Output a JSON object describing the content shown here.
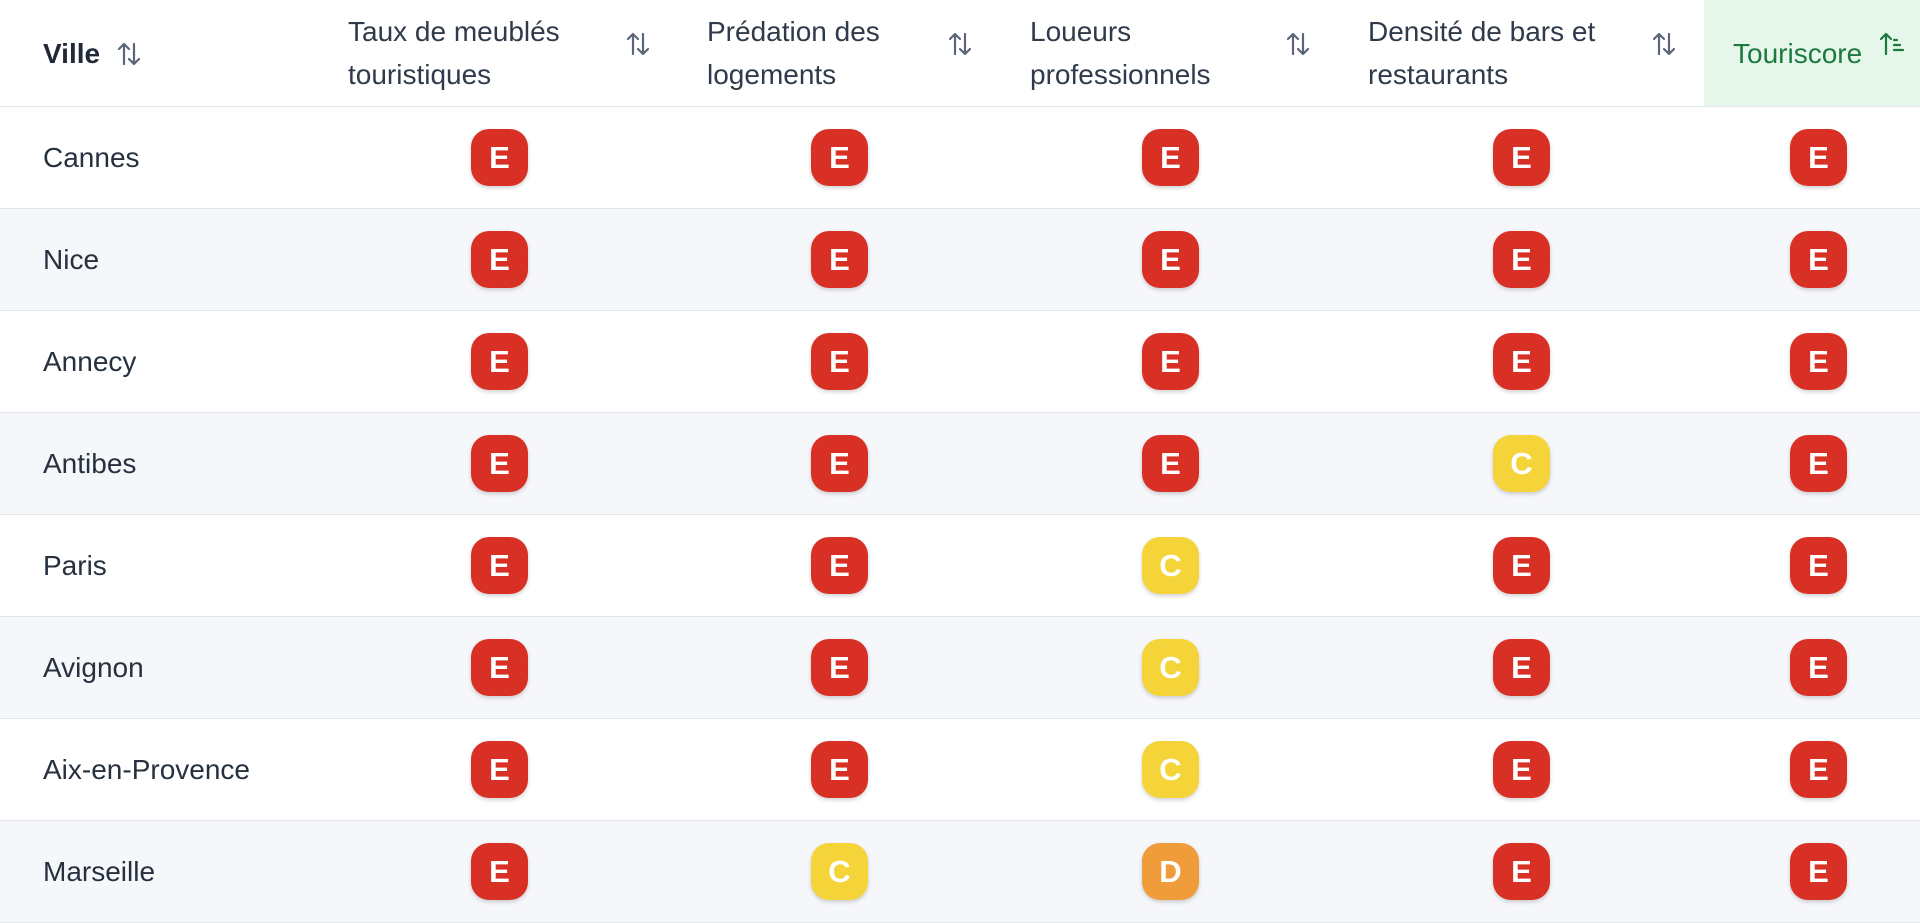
{
  "colors": {
    "E": "#d93025",
    "D": "#f09c3a",
    "C": "#f5d43a",
    "touriscore_header_bg": "#e6f6ea",
    "touriscore_header_text": "#1d7a3e"
  },
  "header": {
    "ville": "Ville",
    "taux_line1": "Taux de meublés",
    "taux_line2": "touristiques",
    "predation_line1": "Prédation des",
    "predation_line2": "logements",
    "loueurs_line1": "Loueurs",
    "loueurs_line2": "professionnels",
    "densite_line1": "Densité de bars et",
    "densite_line2": "restaurants",
    "touriscore": "Touriscore",
    "sort_icon": "sort-arrows-icon",
    "active_sort_icon": "sort-ascending-icon"
  },
  "rows": [
    {
      "ville": "Cannes",
      "scores": [
        "E",
        "E",
        "E",
        "E",
        "E"
      ]
    },
    {
      "ville": "Nice",
      "scores": [
        "E",
        "E",
        "E",
        "E",
        "E"
      ]
    },
    {
      "ville": "Annecy",
      "scores": [
        "E",
        "E",
        "E",
        "E",
        "E"
      ]
    },
    {
      "ville": "Antibes",
      "scores": [
        "E",
        "E",
        "E",
        "C",
        "E"
      ]
    },
    {
      "ville": "Paris",
      "scores": [
        "E",
        "E",
        "C",
        "E",
        "E"
      ]
    },
    {
      "ville": "Avignon",
      "scores": [
        "E",
        "E",
        "C",
        "E",
        "E"
      ]
    },
    {
      "ville": "Aix-en-Provence",
      "scores": [
        "E",
        "E",
        "C",
        "E",
        "E"
      ]
    },
    {
      "ville": "Marseille",
      "scores": [
        "E",
        "C",
        "D",
        "E",
        "E"
      ]
    }
  ]
}
